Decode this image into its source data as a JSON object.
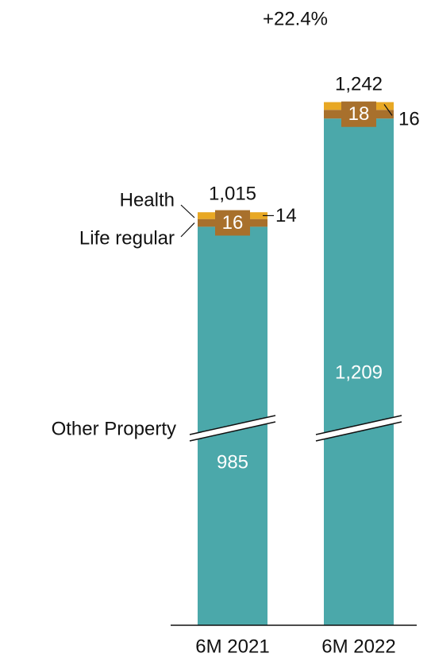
{
  "chart_data": {
    "type": "bar",
    "stacked": true,
    "annotation": "+22.4%",
    "categories": [
      "6M 2021",
      "6M 2022"
    ],
    "series": [
      {
        "name": "Other Property",
        "color": "#4ba8aa",
        "values": [
          985,
          1209
        ],
        "value_labels": [
          "985",
          "1,209"
        ]
      },
      {
        "name": "Life regular",
        "color": "#a8702c",
        "values": [
          16,
          18
        ]
      },
      {
        "name": "Health",
        "color": "#e8a824",
        "values": [
          14,
          16
        ]
      }
    ],
    "totals": [
      1015,
      1242
    ],
    "total_labels": [
      "1,015",
      "1,242"
    ]
  }
}
